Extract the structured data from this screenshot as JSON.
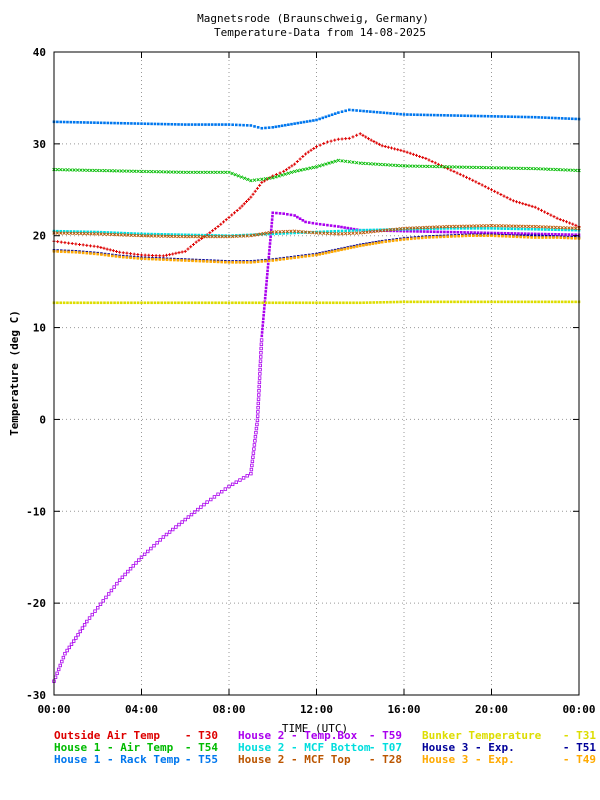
{
  "chart_data": {
    "type": "scatter",
    "title": "Magnetsrode (Braunschweig, Germany)",
    "subtitle": "Temperature-Data from 14-08-2025",
    "xlabel": "TIME (UTC)",
    "ylabel": "Temperature (deg C)",
    "xlim": [
      0,
      24
    ],
    "ylim": [
      -30,
      40
    ],
    "x_ticks": [
      "00:00",
      "04:00",
      "08:00",
      "12:00",
      "16:00",
      "20:00",
      "00:00"
    ],
    "y_ticks": [
      "40",
      "30",
      "20",
      "10",
      "0",
      "-10",
      "-20",
      "-30"
    ],
    "grid": true,
    "legend": "bottom",
    "series": [
      {
        "name": "Outside Air Temp",
        "code": "T30",
        "color": "#dd0000",
        "marker": "plus",
        "x": [
          0,
          1,
          2,
          3,
          4,
          5,
          6,
          6.5,
          7,
          7.5,
          8,
          8.5,
          9,
          9.5,
          10,
          10.5,
          11,
          11.5,
          12,
          12.5,
          13,
          13.5,
          14,
          14.5,
          15,
          16,
          17,
          18,
          19,
          20,
          21,
          22,
          23,
          24
        ],
        "y": [
          19.4,
          19.1,
          18.8,
          18.2,
          17.9,
          17.8,
          18.3,
          19.3,
          20.1,
          21.0,
          22.0,
          23.0,
          24.2,
          25.8,
          26.5,
          27.0,
          27.8,
          28.9,
          29.7,
          30.2,
          30.5,
          30.6,
          31.1,
          30.4,
          29.8,
          29.2,
          28.4,
          27.3,
          26.2,
          25.0,
          23.8,
          23.1,
          21.9,
          21.0
        ]
      },
      {
        "name": "House 1 - Air   Temp",
        "code": "T54",
        "color": "#00bb00",
        "marker": "cross",
        "x": [
          0,
          2,
          4,
          6,
          8,
          9,
          10,
          11,
          12,
          13,
          14,
          16,
          18,
          20,
          22,
          24
        ],
        "y": [
          27.2,
          27.1,
          27.0,
          26.9,
          26.9,
          26.0,
          26.3,
          27.0,
          27.5,
          28.2,
          27.9,
          27.6,
          27.5,
          27.4,
          27.3,
          27.1
        ]
      },
      {
        "name": "House 1 - Rack Temp",
        "code": "T55",
        "color": "#0077ee",
        "marker": "square",
        "x": [
          0,
          2,
          4,
          6,
          8,
          9,
          9.5,
          10,
          11,
          12,
          13,
          13.5,
          14,
          16,
          18,
          20,
          22,
          24
        ],
        "y": [
          32.4,
          32.3,
          32.2,
          32.1,
          32.1,
          32.0,
          31.7,
          31.8,
          32.2,
          32.6,
          33.4,
          33.7,
          33.6,
          33.2,
          33.1,
          33.0,
          32.9,
          32.7
        ]
      },
      {
        "name": "House 2 - Temp.Box",
        "code": "T59",
        "color": "#aa00ee",
        "marker": "square",
        "x": [
          0,
          0.5,
          1,
          1.5,
          2,
          3,
          4,
          5,
          6,
          7,
          8,
          8.5,
          9,
          9.3,
          9.5,
          10,
          10.5,
          11,
          11.5,
          12,
          13,
          14,
          16,
          18,
          20,
          22,
          24
        ],
        "y": [
          -28.5,
          -25.5,
          -23.8,
          -22.0,
          -20.5,
          -17.5,
          -15.0,
          -12.8,
          -10.9,
          -9.0,
          -7.3,
          -6.6,
          -5.9,
          -0.1,
          9.1,
          22.5,
          22.4,
          22.2,
          21.5,
          21.3,
          21.0,
          20.6,
          20.5,
          20.4,
          20.3,
          20.2,
          20.1
        ]
      },
      {
        "name": "House 2 - MCF Bottom",
        "code": "T07",
        "color": "#00dddd",
        "marker": "square",
        "x": [
          0,
          2,
          4,
          6,
          8,
          9,
          10,
          11,
          12,
          13,
          14,
          16,
          18,
          20,
          22,
          24
        ],
        "y": [
          20.5,
          20.4,
          20.2,
          20.1,
          20.0,
          20.1,
          20.2,
          20.3,
          20.4,
          20.5,
          20.6,
          20.7,
          20.8,
          20.8,
          20.7,
          20.6
        ]
      },
      {
        "name": "House 2 - MCF Top",
        "code": "T28",
        "color": "#bb5500",
        "marker": "cross",
        "x": [
          0,
          2,
          4,
          6,
          8,
          9,
          10,
          11,
          12,
          13,
          14,
          16,
          18,
          20,
          22,
          24
        ],
        "y": [
          20.3,
          20.2,
          20.0,
          19.9,
          19.9,
          20.0,
          20.4,
          20.5,
          20.3,
          20.2,
          20.3,
          20.8,
          21.0,
          21.1,
          21.0,
          20.8
        ]
      },
      {
        "name": "Bunker Temperature",
        "code": "T31",
        "color": "#dddd00",
        "marker": "square",
        "x": [
          0,
          2,
          4,
          6,
          8,
          10,
          12,
          14,
          16,
          18,
          20,
          22,
          24
        ],
        "y": [
          12.7,
          12.7,
          12.7,
          12.7,
          12.7,
          12.7,
          12.7,
          12.7,
          12.8,
          12.8,
          12.8,
          12.8,
          12.8
        ]
      },
      {
        "name": "House 3 - Exp.",
        "code": "T51",
        "color": "#000099",
        "marker": "square",
        "x": [
          0,
          1,
          2,
          3,
          4,
          5,
          6,
          7,
          8,
          9,
          10,
          11,
          12,
          13,
          14,
          15,
          16,
          17,
          18,
          19,
          20,
          21,
          22,
          23,
          24
        ],
        "y": [
          18.4,
          18.3,
          18.1,
          17.8,
          17.6,
          17.5,
          17.4,
          17.3,
          17.2,
          17.2,
          17.4,
          17.7,
          18.0,
          18.5,
          19.0,
          19.4,
          19.7,
          19.9,
          20.0,
          20.1,
          20.1,
          20.0,
          20.0,
          19.9,
          19.8
        ]
      },
      {
        "name": "House 3 - Exp.",
        "code": "T49",
        "color": "#ffaa00",
        "marker": "square",
        "x": [
          0,
          1,
          2,
          3,
          4,
          5,
          6,
          7,
          8,
          9,
          10,
          11,
          12,
          13,
          14,
          15,
          16,
          17,
          18,
          19,
          20,
          21,
          22,
          23,
          24
        ],
        "y": [
          18.3,
          18.2,
          18.0,
          17.7,
          17.5,
          17.4,
          17.3,
          17.2,
          17.1,
          17.1,
          17.3,
          17.6,
          17.9,
          18.4,
          18.9,
          19.3,
          19.6,
          19.8,
          19.9,
          20.0,
          20.0,
          19.9,
          19.8,
          19.8,
          19.7
        ]
      }
    ]
  }
}
